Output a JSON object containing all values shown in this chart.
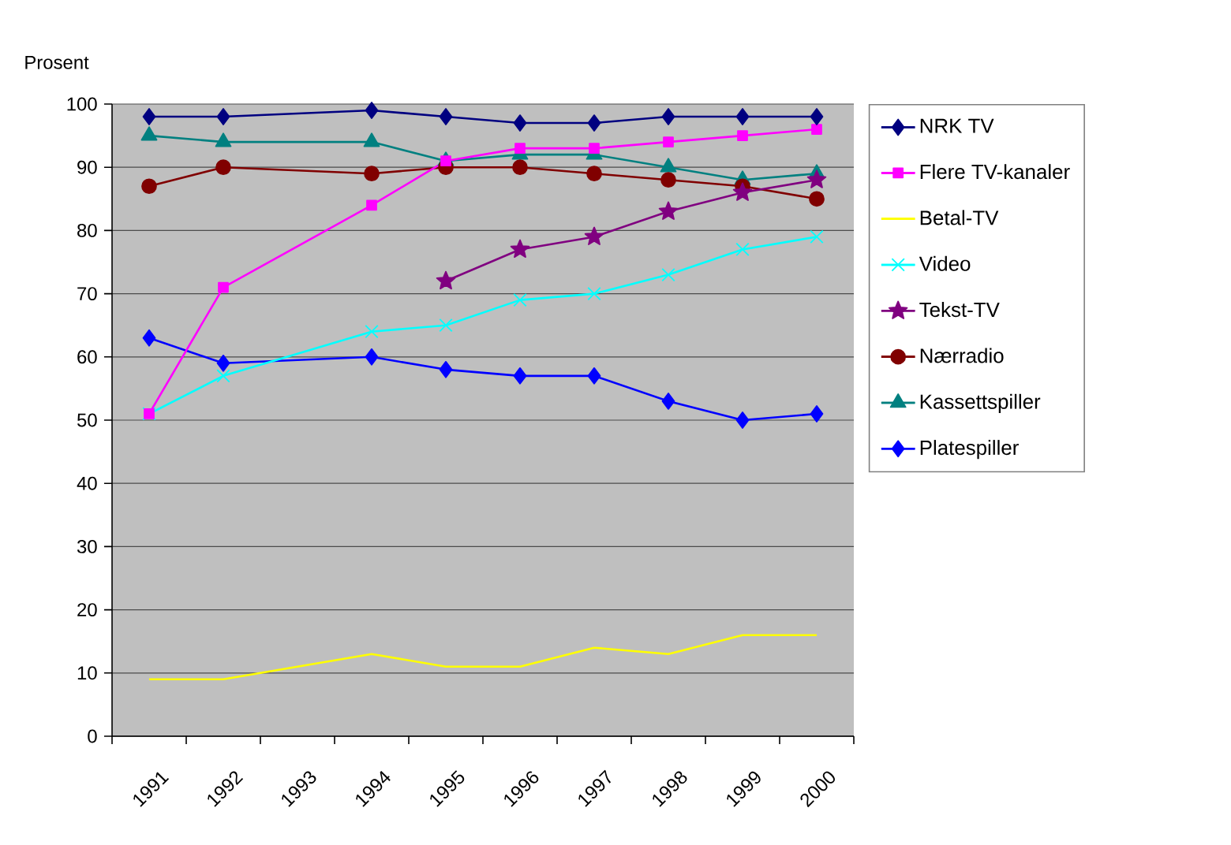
{
  "chart_data": {
    "type": "line",
    "ylabel": "Prosent",
    "categories": [
      "1991",
      "1992",
      "1993",
      "1994",
      "1995",
      "1996",
      "1997",
      "1998",
      "1999",
      "2000"
    ],
    "ylim": [
      0,
      100
    ],
    "yticks": [
      0,
      10,
      20,
      30,
      40,
      50,
      60,
      70,
      80,
      90,
      100
    ],
    "grid": "y",
    "legend": "right",
    "series": [
      {
        "name": "NRK TV",
        "color": "#000080",
        "marker": "diamond",
        "values": [
          98,
          98,
          null,
          99,
          98,
          97,
          97,
          98,
          98,
          98
        ]
      },
      {
        "name": "Flere TV-kanaler",
        "color": "#ff00ff",
        "marker": "square",
        "values": [
          51,
          71,
          null,
          84,
          91,
          93,
          93,
          94,
          95,
          96
        ]
      },
      {
        "name": "Betal-TV",
        "color": "#ffff00",
        "marker": "none",
        "values": [
          9,
          9,
          null,
          13,
          11,
          11,
          14,
          13,
          16,
          16
        ]
      },
      {
        "name": "Video",
        "color": "#00ffff",
        "marker": "cross",
        "values": [
          51,
          57,
          null,
          64,
          65,
          69,
          70,
          73,
          77,
          79
        ]
      },
      {
        "name": "Tekst-TV",
        "color": "#800080",
        "marker": "star",
        "values": [
          null,
          null,
          null,
          null,
          72,
          77,
          79,
          83,
          86,
          88
        ]
      },
      {
        "name": "Nærradio",
        "color": "#800000",
        "marker": "circle",
        "values": [
          87,
          90,
          null,
          89,
          90,
          90,
          89,
          88,
          87,
          85
        ]
      },
      {
        "name": "Kassettspiller",
        "color": "#008080",
        "marker": "triangle",
        "values": [
          95,
          94,
          null,
          94,
          91,
          92,
          92,
          90,
          88,
          89
        ]
      },
      {
        "name": "Platespiller",
        "color": "#0000ff",
        "marker": "diamond",
        "values": [
          63,
          59,
          null,
          60,
          58,
          57,
          57,
          53,
          50,
          51
        ]
      }
    ]
  }
}
